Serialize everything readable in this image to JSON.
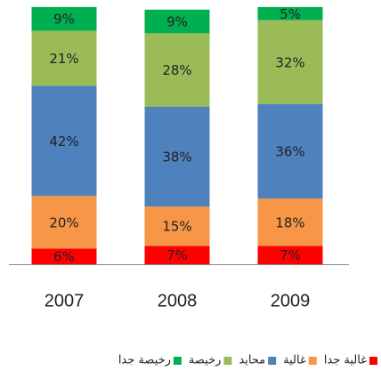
{
  "chart_data": {
    "type": "stacked_bar",
    "categories": [
      "2007",
      "2008",
      "2009"
    ],
    "series": [
      {
        "name": "غالية جدا",
        "color": "#ff0000",
        "values": [
          6,
          7,
          7
        ],
        "value_labels": [
          "6%",
          "7%",
          "7%"
        ]
      },
      {
        "name": "غالية",
        "color": "#f79646",
        "values": [
          20,
          15,
          18
        ],
        "value_labels": [
          "20%",
          "15%",
          "18%"
        ]
      },
      {
        "name": "محايد",
        "color": "#4f81bd",
        "values": [
          42,
          38,
          36
        ],
        "value_labels": [
          "42%",
          "38%",
          "36%"
        ]
      },
      {
        "name": "رخيصة",
        "color": "#9bbb59",
        "values": [
          21,
          28,
          32
        ],
        "value_labels": [
          "21%",
          "28%",
          "32%"
        ]
      },
      {
        "name": "رخيصة جدا",
        "color": "#00b050",
        "values": [
          9,
          9,
          5
        ],
        "value_labels": [
          "9%",
          "9%",
          "5%"
        ]
      }
    ],
    "ylim": [
      0,
      100
    ]
  }
}
